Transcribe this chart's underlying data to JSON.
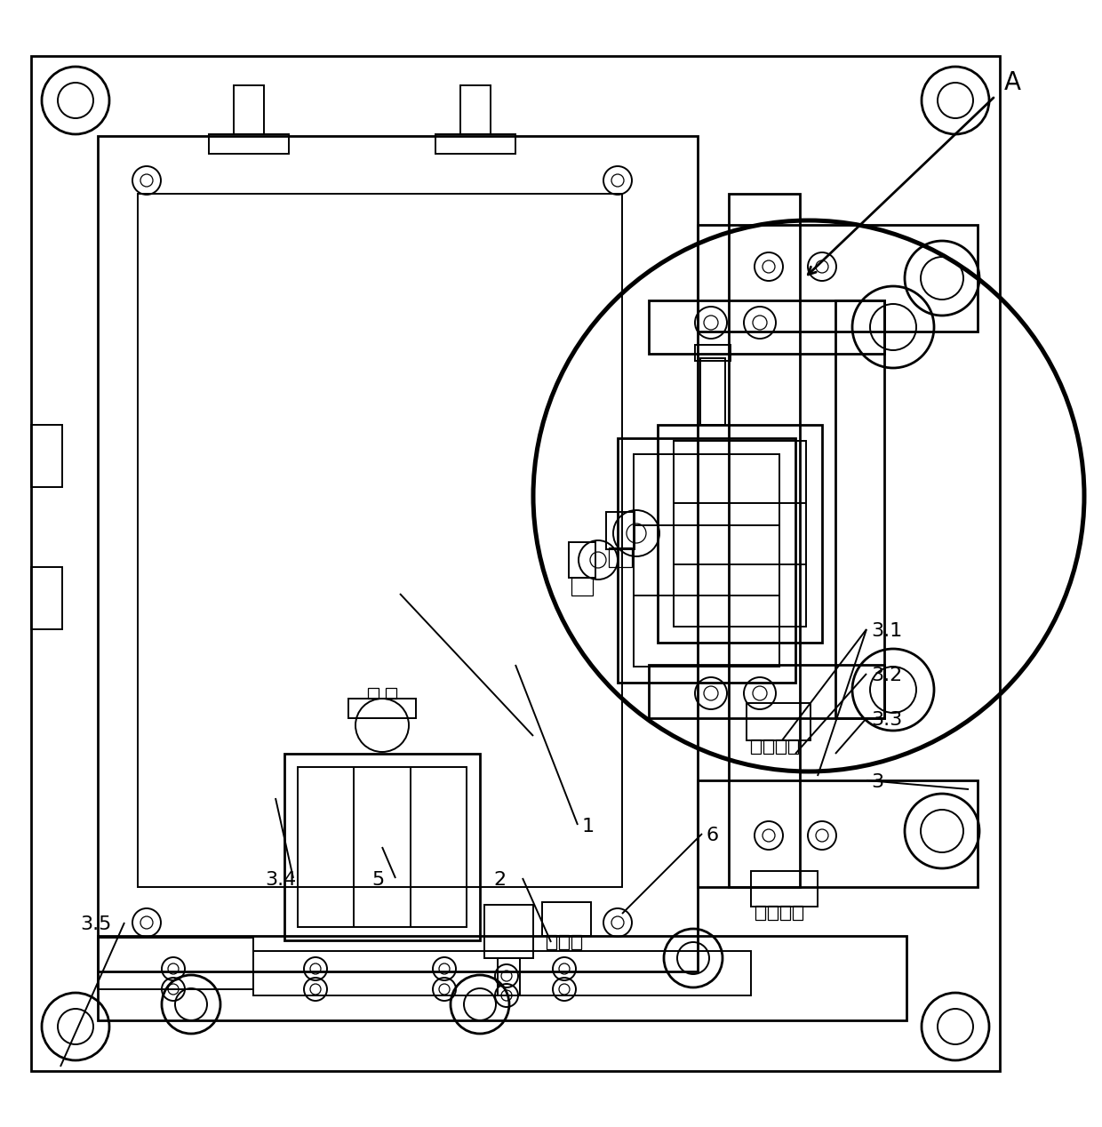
{
  "bg_color": "#ffffff",
  "line_color": "#000000",
  "lw_main": 2.0,
  "lw_med": 1.4,
  "lw_thin": 0.9,
  "fig_width": 12.4,
  "fig_height": 12.68
}
